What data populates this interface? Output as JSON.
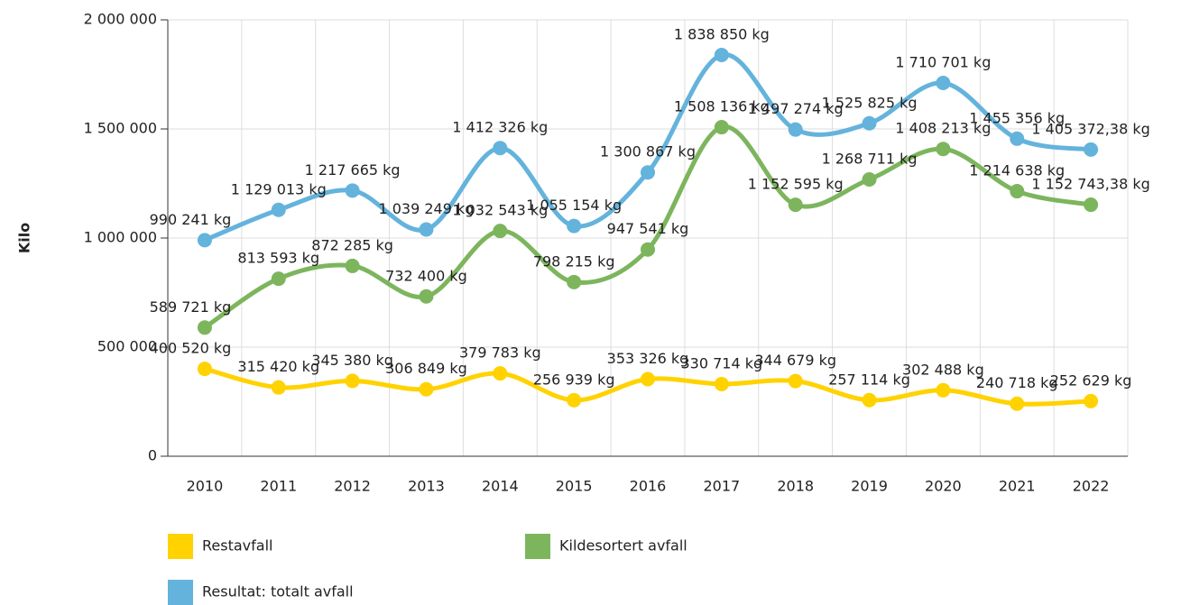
{
  "chart_data": {
    "type": "line",
    "y_label": "Kilo",
    "categories": [
      "2010",
      "2011",
      "2012",
      "2013",
      "2014",
      "2015",
      "2016",
      "2017",
      "2018",
      "2019",
      "2020",
      "2021",
      "2022"
    ],
    "series": [
      {
        "name": "Restavfall",
        "color": "#ffd200",
        "values": [
          400520,
          315420,
          345380,
          306849,
          379783,
          256939,
          353326,
          330714,
          344679,
          257114,
          302488,
          240718,
          252629
        ],
        "value_labels": [
          "400 520 kg",
          "315 420 kg",
          "345 380 kg",
          "306 849 kg",
          "379 783 kg",
          "256 939 kg",
          "353 326 kg",
          "330 714 kg",
          "344 679 kg",
          "257 114 kg",
          "302 488 kg",
          "240 718 kg",
          "252 629 kg"
        ]
      },
      {
        "name": "Kildesortert avfall",
        "color": "#7db55d",
        "values": [
          589721,
          813593,
          872285,
          732400,
          1032543,
          798215,
          947541,
          1508136,
          1152595,
          1268711,
          1408213,
          1214638,
          1152743.38
        ],
        "value_labels": [
          "589 721 kg",
          "813 593 kg",
          "872 285 kg",
          "732 400 kg",
          "1 032 543 kg",
          "798 215 kg",
          "947 541 kg",
          "1 508 136 kg",
          "1 152 595 kg",
          "1 268 711 kg",
          "1 408 213 kg",
          "1 214 638 kg",
          "1 152 743,38 kg"
        ]
      },
      {
        "name": "Resultat: totalt avfall",
        "color": "#64b3dc",
        "values": [
          990241,
          1129013,
          1217665,
          1039249,
          1412326,
          1055154,
          1300867,
          1838850,
          1497274,
          1525825,
          1710701,
          1455356,
          1405372.38
        ],
        "value_labels": [
          "990 241 kg",
          "1 129 013 kg",
          "1 217 665 kg",
          "1 039 249 kg",
          "1 412 326 kg",
          "1 055 154 kg",
          "1 300 867 kg",
          "1 838 850 kg",
          "1 497 274 kg",
          "1 525 825 kg",
          "1 710 701 kg",
          "1 455 356 kg",
          "1 405 372,38 kg"
        ]
      }
    ],
    "ylim": [
      0,
      2000000
    ],
    "yticks": [
      0,
      {
        "value": 500000,
        "label": "500 000"
      },
      {
        "value": 1000000,
        "label": "1 000 000"
      },
      {
        "value": 1500000,
        "label": "1 500 000"
      },
      {
        "value": 2000000,
        "label": "2 000 000"
      }
    ],
    "grid": true
  }
}
